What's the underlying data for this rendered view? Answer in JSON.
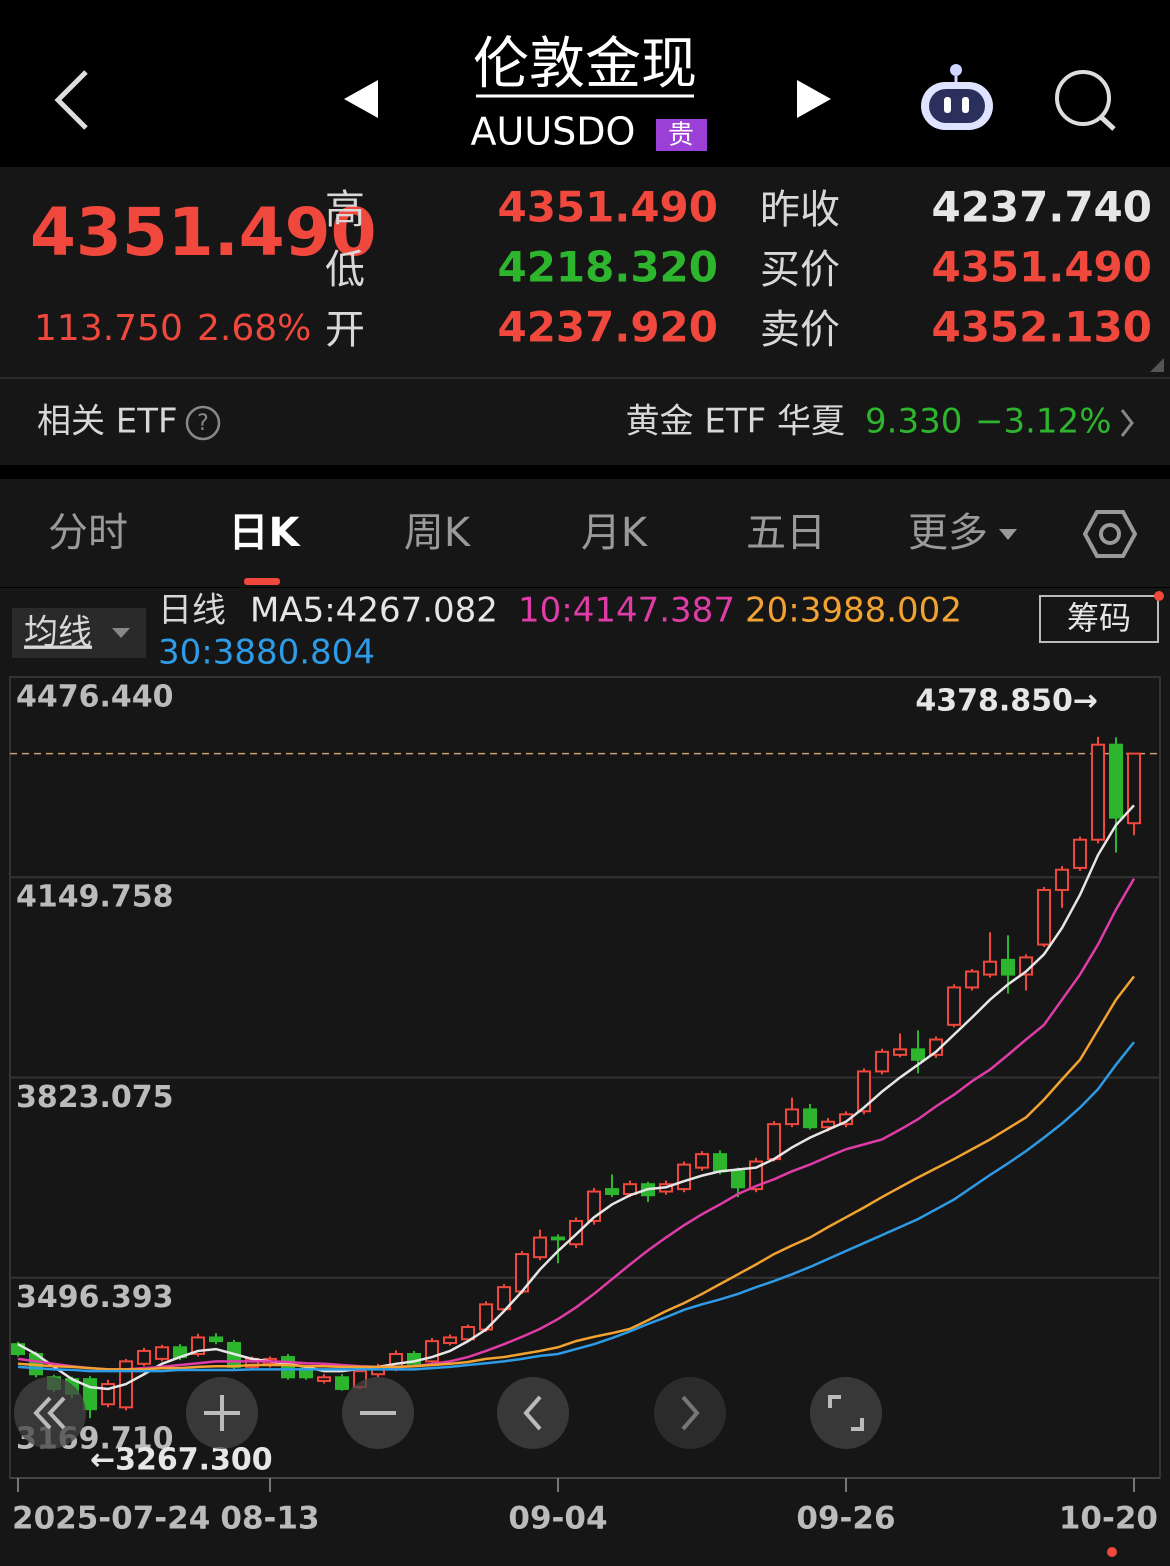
{
  "header": {
    "title": "伦敦金现",
    "code": "AUUSDO",
    "badge": "贵"
  },
  "quote": {
    "price": "4351.490",
    "change": "113.750",
    "change_pct": "2.68%",
    "left": [
      {
        "label": "高",
        "value": "4351.490"
      },
      {
        "label": "低",
        "value": "4218.320"
      },
      {
        "label": "开",
        "value": "4237.920"
      }
    ],
    "right": [
      {
        "label": "昨收",
        "value": "4237.740"
      },
      {
        "label": "买价",
        "value": "4351.490"
      },
      {
        "label": "卖价",
        "value": "4352.130"
      }
    ]
  },
  "etf": {
    "label": "相关 ETF",
    "help": "?",
    "name": "黄金 ETF 华夏",
    "price": "9.330",
    "change_pct": "−3.12%"
  },
  "tabs": [
    "分时",
    "日K",
    "周K",
    "月K",
    "五日",
    "更多"
  ],
  "indicator": {
    "selector": "均线",
    "period": "日线",
    "button": "筹码"
  },
  "chart_data": {
    "type": "candlestick",
    "up_color": "#f0483c",
    "down_color": "#2db52d",
    "categories": [
      "2025-07-24",
      null,
      null,
      null,
      null,
      null,
      null,
      null,
      null,
      null,
      null,
      null,
      null,
      null,
      "08-13",
      null,
      null,
      null,
      null,
      null,
      null,
      null,
      null,
      null,
      null,
      null,
      null,
      null,
      null,
      null,
      "09-04",
      null,
      null,
      null,
      null,
      null,
      null,
      null,
      null,
      null,
      null,
      null,
      null,
      null,
      null,
      null,
      "09-26",
      null,
      null,
      null,
      null,
      null,
      null,
      null,
      null,
      null,
      null,
      null,
      null,
      null,
      null,
      null,
      "10-20"
    ],
    "open": [
      3388,
      3372,
      3334,
      3331,
      3331,
      3290,
      3285,
      3356,
      3364,
      3383,
      3372,
      3399,
      3390,
      3351,
      3356,
      3367,
      3348,
      3328,
      3334,
      3318,
      3339,
      3348,
      3372,
      3360,
      3390,
      3396,
      3412,
      3445,
      3474,
      3530,
      3562,
      3551,
      3589,
      3641,
      3633,
      3649,
      3637,
      3641,
      3676,
      3698,
      3670,
      3641,
      3690,
      3747,
      3771,
      3742,
      3747,
      3768,
      3833,
      3860,
      3869,
      3860,
      3909,
      3970,
      3991,
      4015,
      3991,
      4040,
      4129,
      4165,
      4211,
      4366,
      4237.92
    ],
    "high": [
      3392,
      3376,
      3338,
      3335,
      3336,
      3330,
      3364,
      3382,
      3387,
      3388,
      3405,
      3406,
      3395,
      3368,
      3368,
      3372,
      3352,
      3339,
      3339,
      3348,
      3356,
      3378,
      3377,
      3398,
      3404,
      3420,
      3458,
      3486,
      3540,
      3575,
      3567,
      3595,
      3643,
      3665,
      3655,
      3653,
      3655,
      3686,
      3703,
      3704,
      3676,
      3692,
      3752,
      3790,
      3780,
      3757,
      3768,
      3838,
      3870,
      3895,
      3900,
      3890,
      3975,
      4000,
      4060,
      4055,
      4024,
      4134,
      4168,
      4216,
      4378.85,
      4378,
      4351.49
    ],
    "low": [
      3368,
      3334,
      3310,
      3300,
      3267.3,
      3285,
      3280,
      3352,
      3360,
      3362,
      3368,
      3388,
      3346,
      3346,
      3350,
      3330,
      3330,
      3324,
      3312,
      3314,
      3334,
      3344,
      3350,
      3356,
      3386,
      3392,
      3408,
      3440,
      3470,
      3525,
      3520,
      3545,
      3583,
      3628,
      3628,
      3620,
      3632,
      3636,
      3671,
      3665,
      3628,
      3636,
      3686,
      3742,
      3738,
      3735,
      3742,
      3763,
      3828,
      3856,
      3830,
      3855,
      3905,
      3965,
      3986,
      3960,
      3965,
      4036,
      4100,
      4160,
      4205,
      4190,
      4218.32
    ],
    "close": [
      3372,
      3339,
      3315,
      3307,
      3282,
      3323,
      3360,
      3377,
      3383,
      3367,
      3399,
      3393,
      3351,
      3364,
      3364,
      3334,
      3334,
      3334,
      3315,
      3344,
      3351,
      3372,
      3356,
      3393,
      3399,
      3416,
      3453,
      3481,
      3535,
      3562,
      3559,
      3589,
      3637,
      3633,
      3649,
      3631,
      3649,
      3681,
      3698,
      3670,
      3644,
      3686,
      3747,
      3771,
      3742,
      3751,
      3763,
      3833,
      3865,
      3869,
      3852,
      3885,
      3970,
      3996,
      4012,
      3991,
      4019,
      4129,
      4162,
      4211,
      4366,
      4247,
      4351.49
    ],
    "series": [
      {
        "name": "MA5:4267.082",
        "color": "#e6e6e6",
        "values": [
          3388,
          3372,
          3351,
          3331,
          3318,
          3315,
          3323,
          3339,
          3356,
          3367,
          3377,
          3380,
          3372,
          3364,
          3360,
          3356,
          3351,
          3344,
          3344,
          3348,
          3351,
          3356,
          3360,
          3367,
          3377,
          3393,
          3412,
          3442,
          3474,
          3510,
          3540,
          3567,
          3595,
          3616,
          3631,
          3641,
          3644,
          3654,
          3663,
          3670,
          3673,
          3676,
          3690,
          3709,
          3725,
          3738,
          3751,
          3774,
          3800,
          3823,
          3844,
          3865,
          3893,
          3921,
          3950,
          3975,
          3996,
          4024,
          4067,
          4121,
          4186,
          4235,
          4267.082
        ]
      },
      {
        "name": "10:4147.387",
        "color": "#e03ca8",
        "values": [
          3364,
          3360,
          3356,
          3352,
          3349,
          3347,
          3347,
          3349,
          3351,
          3354,
          3357,
          3360,
          3360,
          3360,
          3360,
          3359,
          3357,
          3356,
          3354,
          3352,
          3351,
          3351,
          3352,
          3356,
          3360,
          3367,
          3377,
          3388,
          3400,
          3413,
          3429,
          3448,
          3470,
          3494,
          3518,
          3541,
          3562,
          3582,
          3600,
          3616,
          3633,
          3646,
          3657,
          3670,
          3681,
          3694,
          3706,
          3714,
          3722,
          3738,
          3755,
          3776,
          3795,
          3817,
          3836,
          3860,
          3885,
          3909,
          3950,
          3991,
          4040,
          4097,
          4147.387
        ]
      },
      {
        "name": "20:3988.002",
        "color": "#f2a230",
        "values": [
          3356,
          3354,
          3352,
          3351,
          3349,
          3347,
          3347,
          3347,
          3349,
          3349,
          3351,
          3352,
          3352,
          3354,
          3354,
          3354,
          3352,
          3352,
          3351,
          3351,
          3351,
          3351,
          3352,
          3354,
          3356,
          3359,
          3364,
          3367,
          3372,
          3377,
          3383,
          3393,
          3400,
          3406,
          3413,
          3427,
          3442,
          3455,
          3470,
          3486,
          3502,
          3518,
          3535,
          3549,
          3562,
          3579,
          3595,
          3611,
          3628,
          3644,
          3660,
          3675,
          3690,
          3706,
          3722,
          3740,
          3758,
          3787,
          3820,
          3852,
          3901,
          3950,
          3988.002
        ]
      },
      {
        "name": "30:3880.804",
        "color": "#2e9be6",
        "values": [
          3351,
          3349,
          3347,
          3346,
          3344,
          3344,
          3344,
          3344,
          3344,
          3346,
          3346,
          3346,
          3346,
          3347,
          3347,
          3347,
          3347,
          3347,
          3347,
          3347,
          3347,
          3347,
          3347,
          3349,
          3351,
          3354,
          3357,
          3360,
          3364,
          3369,
          3372,
          3380,
          3388,
          3398,
          3409,
          3421,
          3432,
          3444,
          3453,
          3461,
          3470,
          3481,
          3491,
          3502,
          3514,
          3527,
          3540,
          3553,
          3566,
          3579,
          3592,
          3608,
          3624,
          3644,
          3664,
          3683,
          3703,
          3725,
          3748,
          3774,
          3804,
          3844,
          3880.804
        ]
      }
    ],
    "ylim": [
      3169.71,
      4476.44
    ],
    "yticks": [
      {
        "value": 3169.71,
        "label": "3169.710"
      },
      {
        "value": 3496.393,
        "label": "3496.393"
      },
      {
        "value": 3823.075,
        "label": "3823.075"
      },
      {
        "value": 4149.758,
        "label": "4149.758"
      },
      {
        "value": 4476.44,
        "label": "4476.440"
      }
    ],
    "grid": true,
    "high_label": "4378.850→",
    "low_label": "←3267.300"
  }
}
